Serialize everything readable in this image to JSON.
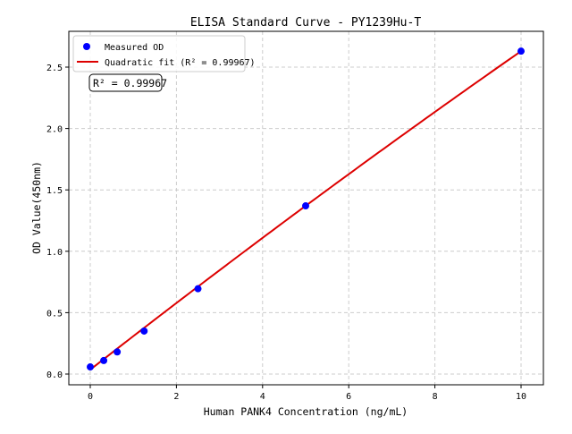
{
  "chart_data": {
    "type": "scatter",
    "title": "ELISA Standard Curve - PY1239Hu-T",
    "xlabel": "Human PANK4 Concentration (ng/mL)",
    "ylabel": "OD Value(450nm)",
    "xlim": [
      -0.5,
      10.5
    ],
    "ylim": [
      -0.08,
      2.75
    ],
    "xticks": [
      0,
      2,
      4,
      6,
      8,
      10
    ],
    "yticks": [
      0.0,
      0.5,
      1.0,
      1.5,
      2.0,
      2.5
    ],
    "xtick_labels": [
      "0",
      "2",
      "4",
      "6",
      "8",
      "10"
    ],
    "ytick_labels": [
      "0.0",
      "0.5",
      "1.0",
      "1.5",
      "2.0",
      "2.5"
    ],
    "grid": true,
    "legend_position": "top-left",
    "series": [
      {
        "name": "Measured OD",
        "kind": "scatter",
        "color": "#0000ff",
        "x": [
          0,
          0.3125,
          0.625,
          1.25,
          2.5,
          5,
          10
        ],
        "y": [
          0.058,
          0.11,
          0.18,
          0.35,
          0.695,
          1.37,
          2.63
        ]
      },
      {
        "name": "Quadratic fit (R² = 0.99967)",
        "kind": "line",
        "color": "#dd0000",
        "coefficients": {
          "a": -0.00148,
          "b": 0.2742,
          "c": 0.036
        }
      }
    ],
    "annotation": "R² = 0.99967"
  }
}
